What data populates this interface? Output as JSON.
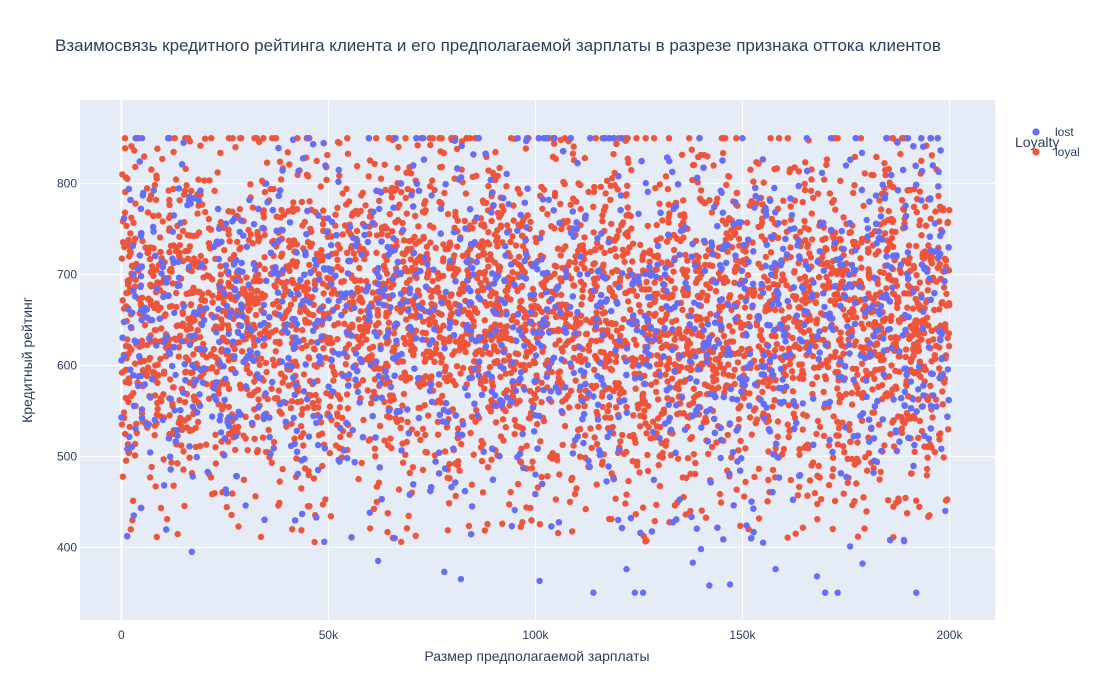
{
  "chart_data": {
    "type": "scatter",
    "title": "Взаимосвязь кредитного рейтинга клиента и его предполагаемой зарплаты в разрезе признака оттока клиентов",
    "xlabel": "Размер предполагаемой зарплаты",
    "ylabel": "Кредитный рейтинг",
    "xlim": [
      -10000,
      211000
    ],
    "ylim": [
      320,
      892
    ],
    "x_ticks": [
      0,
      50000,
      100000,
      150000,
      200000
    ],
    "x_tick_labels": [
      "0",
      "50k",
      "100k",
      "150k",
      "200k"
    ],
    "y_ticks": [
      400,
      500,
      600,
      700,
      800
    ],
    "y_tick_labels": [
      "400",
      "500",
      "600",
      "700",
      "800"
    ],
    "grid": true,
    "legend": {
      "title": "Loyalty",
      "placement": "top-right, outside plot"
    },
    "plot_background": "#E5ECF6",
    "series": [
      {
        "name": "lost",
        "color": "#636EFA",
        "points": [
          [
            3000,
            435
          ],
          [
            17000,
            395
          ],
          [
            49000,
            406
          ],
          [
            62000,
            385
          ],
          [
            66000,
            410
          ],
          [
            78000,
            373
          ],
          [
            82000,
            365
          ],
          [
            101000,
            363
          ],
          [
            114000,
            350
          ],
          [
            122000,
            376
          ],
          [
            124000,
            350
          ],
          [
            126000,
            350
          ],
          [
            138000,
            383
          ],
          [
            140000,
            398
          ],
          [
            142000,
            358
          ],
          [
            147000,
            359
          ],
          [
            151000,
            424
          ],
          [
            155000,
            405
          ],
          [
            158000,
            376
          ],
          [
            168000,
            368
          ],
          [
            170000,
            350
          ],
          [
            173000,
            350
          ],
          [
            176000,
            401
          ],
          [
            179000,
            382
          ],
          [
            189000,
            408
          ],
          [
            192000,
            350
          ],
          [
            199000,
            440
          ],
          [
            120000,
            430
          ],
          [
            95000,
            441
          ],
          [
            30000,
            446
          ],
          [
            60000,
            438
          ],
          [
            100000,
            480
          ],
          [
            130000,
            520
          ],
          [
            160000,
            560
          ],
          [
            40000,
            600
          ],
          [
            20000,
            650
          ],
          [
            85000,
            700
          ],
          [
            110000,
            750
          ],
          [
            145000,
            790
          ],
          [
            175000,
            820
          ],
          [
            10000,
            540
          ],
          [
            55000,
            590
          ],
          [
            70000,
            640
          ],
          [
            90000,
            690
          ],
          [
            115000,
            740
          ],
          [
            135000,
            610
          ],
          [
            165000,
            660
          ],
          [
            185000,
            710
          ],
          [
            195000,
            620
          ],
          [
            5000,
            850
          ],
          [
            45000,
            850
          ],
          [
            98000,
            850
          ],
          [
            150000,
            850
          ],
          [
            190000,
            850
          ],
          [
            25000,
            520
          ],
          [
            75000,
            560
          ],
          [
            125000,
            600
          ],
          [
            155000,
            680
          ],
          [
            180000,
            760
          ],
          [
            35000,
            800
          ]
        ]
      },
      {
        "name": "loyal",
        "color": "#EF553B",
        "points": []
      }
    ]
  }
}
